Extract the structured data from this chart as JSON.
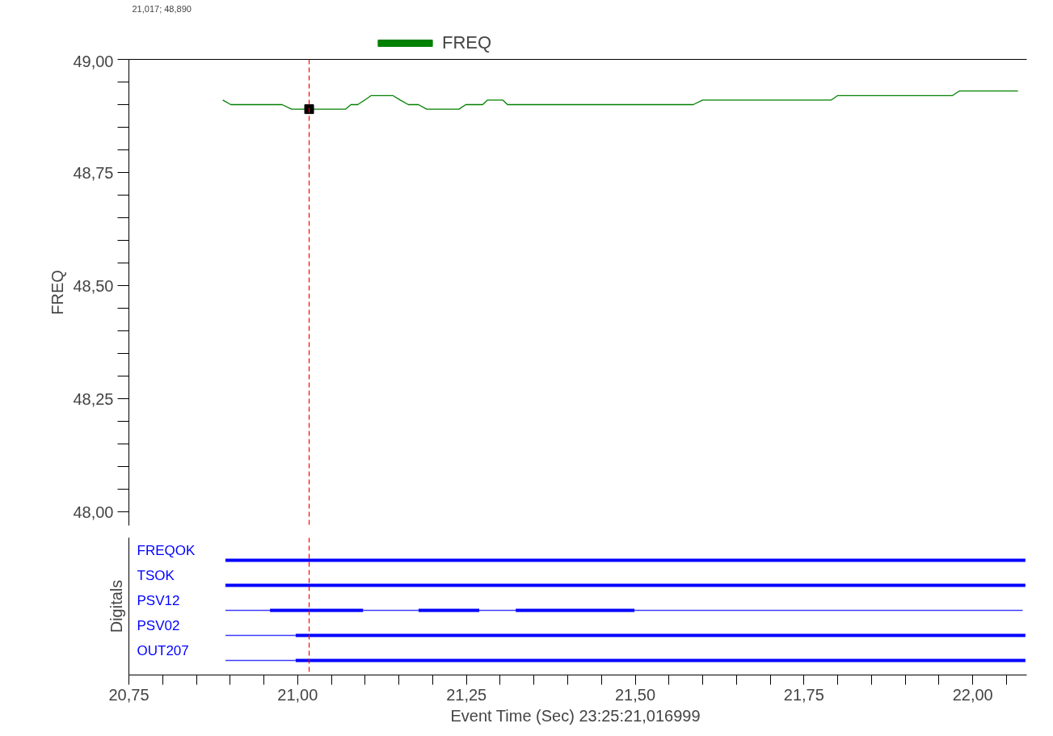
{
  "chart_data": [
    {
      "type": "line",
      "ylabel": "FREQ",
      "xlim": [
        20.75,
        22.08
      ],
      "ylim": [
        47.97,
        49.0
      ],
      "yticks": [
        {
          "value": 48.0,
          "label": "48,00"
        },
        {
          "value": 48.05,
          "label": null
        },
        {
          "value": 48.1,
          "label": null
        },
        {
          "value": 48.15,
          "label": null
        },
        {
          "value": 48.2,
          "label": null
        },
        {
          "value": 48.25,
          "label": "48,25"
        },
        {
          "value": 48.3,
          "label": null
        },
        {
          "value": 48.35,
          "label": null
        },
        {
          "value": 48.4,
          "label": null
        },
        {
          "value": 48.45,
          "label": null
        },
        {
          "value": 48.5,
          "label": "48,50"
        },
        {
          "value": 48.55,
          "label": null
        },
        {
          "value": 48.6,
          "label": null
        },
        {
          "value": 48.65,
          "label": null
        },
        {
          "value": 48.7,
          "label": null
        },
        {
          "value": 48.75,
          "label": "48,75"
        },
        {
          "value": 48.8,
          "label": null
        },
        {
          "value": 48.85,
          "label": null
        },
        {
          "value": 48.9,
          "label": null
        },
        {
          "value": 48.95,
          "label": null
        },
        {
          "value": 49.0,
          "label": "49,00"
        }
      ],
      "series": [
        {
          "name": "FREQ",
          "color": "#008000",
          "x": [
            20.889,
            20.901,
            20.977,
            20.991,
            21.071,
            21.079,
            21.089,
            21.099,
            21.109,
            21.141,
            21.152,
            21.164,
            21.179,
            21.191,
            21.239,
            21.249,
            21.274,
            21.281,
            21.304,
            21.311,
            21.586,
            21.6,
            21.79,
            21.8,
            21.97,
            21.98,
            22.067
          ],
          "values": [
            48.91,
            48.9,
            48.9,
            48.89,
            48.89,
            48.9,
            48.9,
            48.91,
            48.92,
            48.92,
            48.91,
            48.9,
            48.9,
            48.89,
            48.89,
            48.9,
            48.9,
            48.91,
            48.91,
            48.9,
            48.9,
            48.91,
            48.91,
            48.92,
            48.92,
            48.93,
            48.93
          ]
        },
        {
          "type": "scatter",
          "marker": "square",
          "color": "#000000",
          "x": [
            21.017
          ],
          "values": [
            48.89
          ]
        }
      ],
      "ref_lines": [
        {
          "axis": "x",
          "value": 21.017,
          "color": "#ff0000",
          "line_style": "dashed"
        }
      ],
      "annotations": [
        "21,017; 48,890"
      ],
      "legend": "top",
      "grid": false,
      "marker": "none",
      "tick_labels": "y"
    },
    {
      "type": "bar",
      "orientation": "horizontal",
      "ylabel": "Digitals",
      "xlabel": "Event Time (Sec)  23:25:21,016999",
      "xlim": [
        20.75,
        22.08
      ],
      "xticks": [
        {
          "value": 20.75,
          "label": "20,75"
        },
        {
          "value": 20.8,
          "label": null
        },
        {
          "value": 20.85,
          "label": null
        },
        {
          "value": 20.9,
          "label": null
        },
        {
          "value": 20.95,
          "label": null
        },
        {
          "value": 21.0,
          "label": "21,00"
        },
        {
          "value": 21.05,
          "label": null
        },
        {
          "value": 21.1,
          "label": null
        },
        {
          "value": 21.15,
          "label": null
        },
        {
          "value": 21.2,
          "label": null
        },
        {
          "value": 21.25,
          "label": "21,25"
        },
        {
          "value": 21.3,
          "label": null
        },
        {
          "value": 21.35,
          "label": null
        },
        {
          "value": 21.4,
          "label": null
        },
        {
          "value": 21.45,
          "label": null
        },
        {
          "value": 21.5,
          "label": "21,50"
        },
        {
          "value": 21.55,
          "label": null
        },
        {
          "value": 21.6,
          "label": null
        },
        {
          "value": 21.65,
          "label": null
        },
        {
          "value": 21.7,
          "label": null
        },
        {
          "value": 21.75,
          "label": "21,75"
        },
        {
          "value": 21.8,
          "label": null
        },
        {
          "value": 21.85,
          "label": null
        },
        {
          "value": 21.9,
          "label": null
        },
        {
          "value": 21.95,
          "label": null
        },
        {
          "value": 22.0,
          "label": "22,00"
        },
        {
          "value": 22.05,
          "label": null
        }
      ],
      "categories": [
        "FREQOK",
        "TSOK",
        "PSV12",
        "PSV02",
        "OUT207"
      ],
      "series": [
        {
          "color": "#0000ff",
          "base": [
            20.893,
            20.893,
            20.959,
            20.997,
            20.997
          ],
          "values": [
            1.185,
            1.185,
            0.138,
            1.081,
            1.081
          ]
        },
        {
          "color": "#0000ff",
          "base": [
            null,
            null,
            21.179,
            null,
            null
          ],
          "values": [
            null,
            null,
            0.09,
            null,
            null
          ]
        },
        {
          "color": "#0000ff",
          "base": [
            null,
            null,
            21.323,
            null,
            null
          ],
          "values": [
            null,
            null,
            0.176,
            null,
            null
          ]
        },
        {
          "color": "#3c3cff",
          "base": [
            null,
            null,
            20.893,
            20.893,
            20.893
          ],
          "values": [
            null,
            null,
            0.066,
            0.104,
            0.104
          ]
        },
        {
          "color": "#3c3cff",
          "base": [
            null,
            null,
            21.097,
            null,
            null
          ],
          "values": [
            null,
            null,
            0.082,
            null,
            null
          ]
        },
        {
          "color": "#3c3cff",
          "base": [
            null,
            null,
            21.269,
            null,
            null
          ],
          "values": [
            null,
            null,
            0.054,
            null,
            null
          ]
        },
        {
          "color": "#3c3cff",
          "base": [
            null,
            null,
            21.499,
            null,
            null
          ],
          "values": [
            null,
            null,
            0.575,
            null,
            null
          ]
        }
      ],
      "ref_lines": [
        {
          "axis": "x",
          "value": 21.017,
          "color": "#ff0000",
          "line_style": "dashed"
        }
      ],
      "grid": false,
      "tick_labels": "x"
    }
  ]
}
